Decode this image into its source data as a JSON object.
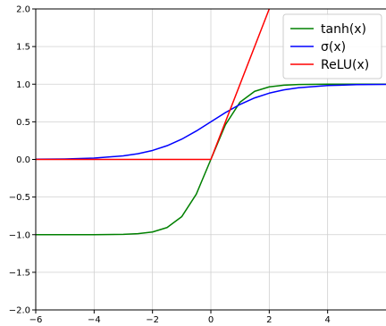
{
  "chart_data": {
    "type": "line",
    "xlim": [
      -6,
      6
    ],
    "ylim": [
      -2,
      2
    ],
    "x_ticks": [
      -6,
      -4,
      -2,
      0,
      2,
      4
    ],
    "x_tick_labels": [
      "−6",
      "−4",
      "−2",
      "0",
      "2",
      "4"
    ],
    "y_ticks": [
      -2.0,
      -1.5,
      -1.0,
      -0.5,
      0.0,
      0.5,
      1.0,
      1.5,
      2.0
    ],
    "y_tick_labels": [
      "−2.0",
      "−1.5",
      "−1.0",
      "−0.5",
      "0.0",
      "0.5",
      "1.0",
      "1.5",
      "2.0"
    ],
    "grid": true,
    "legend_position": "top-right",
    "series": [
      {
        "name": "tanh(x)",
        "color": "#008000",
        "x": [
          -6,
          -5,
          -4,
          -3,
          -2.5,
          -2,
          -1.5,
          -1,
          -0.5,
          0,
          0.5,
          1,
          1.5,
          2,
          2.5,
          3,
          4,
          5,
          6
        ],
        "y": [
          -1.0,
          -0.9999,
          -0.9993,
          -0.9951,
          -0.9866,
          -0.964,
          -0.9051,
          -0.7616,
          -0.4621,
          0.0,
          0.4621,
          0.7616,
          0.9051,
          0.964,
          0.9866,
          0.9951,
          0.9993,
          0.9999,
          1.0
        ]
      },
      {
        "name": "σ(x)",
        "color": "#0000ff",
        "x": [
          -6,
          -5,
          -4,
          -3,
          -2.5,
          -2,
          -1.5,
          -1,
          -0.5,
          0,
          0.5,
          1,
          1.5,
          2,
          2.5,
          3,
          4,
          5,
          6
        ],
        "y": [
          0.0025,
          0.0067,
          0.018,
          0.0474,
          0.0759,
          0.1192,
          0.1824,
          0.2689,
          0.3775,
          0.5,
          0.6225,
          0.7311,
          0.8176,
          0.8808,
          0.9241,
          0.9526,
          0.982,
          0.9933,
          0.9975
        ]
      },
      {
        "name": "ReLU(x)",
        "color": "#ff0000",
        "x": [
          -6,
          0,
          2,
          6
        ],
        "y": [
          0,
          0,
          2,
          6
        ]
      }
    ],
    "legend": [
      {
        "label": "tanh(x)",
        "color": "#008000"
      },
      {
        "label": "σ(x)",
        "color": "#0000ff"
      },
      {
        "label": "ReLU(x)",
        "color": "#ff0000"
      }
    ]
  }
}
